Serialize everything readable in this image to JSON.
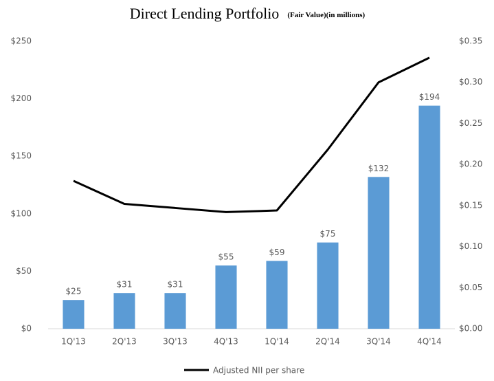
{
  "chart_data": {
    "type": "bar",
    "title": "Direct Lending Portfolio",
    "subtitle": "(Fair Value)(in millions)",
    "categories": [
      "1Q'13",
      "2Q'13",
      "3Q'13",
      "4Q'13",
      "1Q'14",
      "2Q'14",
      "3Q'14",
      "4Q'14"
    ],
    "series": [
      {
        "name": "Direct Lending Portfolio",
        "type": "bar",
        "color": "#5b9bd5",
        "values": [
          25,
          31,
          31,
          55,
          59,
          75,
          132,
          194
        ],
        "value_labels": [
          "$25",
          "$31",
          "$31",
          "$55",
          "$59",
          "$75",
          "$132",
          "$194"
        ]
      },
      {
        "name": "Adjusted NII per share",
        "type": "line",
        "axis": "y2",
        "color": "#000000",
        "values": [
          0.18,
          0.152,
          0.147,
          0.142,
          0.144,
          0.218,
          0.3,
          0.33
        ]
      }
    ],
    "ylim": [
      0,
      250
    ],
    "yticks": [
      {
        "value": 0,
        "label": "$0"
      },
      {
        "value": 50,
        "label": "$50"
      },
      {
        "value": 100,
        "label": "$100"
      },
      {
        "value": 150,
        "label": "$150"
      },
      {
        "value": 200,
        "label": "$200"
      },
      {
        "value": 250,
        "label": "$250"
      }
    ],
    "y2lim": [
      0,
      0.35
    ],
    "y2ticks": [
      {
        "value": 0,
        "label": "$0.00"
      },
      {
        "value": 0.05,
        "label": "$0.05"
      },
      {
        "value": 0.1,
        "label": "$0.10"
      },
      {
        "value": 0.15,
        "label": "$0.15"
      },
      {
        "value": 0.2,
        "label": "$0.20"
      },
      {
        "value": 0.25,
        "label": "$0.25"
      },
      {
        "value": 0.3,
        "label": "$0.30"
      },
      {
        "value": 0.35,
        "label": "$0.35"
      }
    ],
    "grid": false,
    "legend": "bottom"
  }
}
